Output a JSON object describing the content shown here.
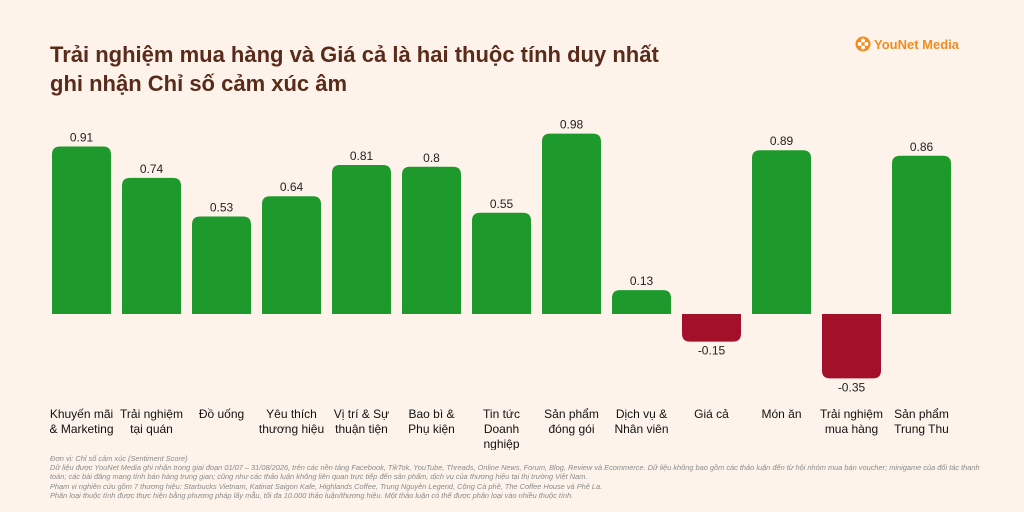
{
  "header": {
    "title_line1": "Trải nghiệm mua hàng và Giá cả là hai thuộc tính duy nhất",
    "title_line2": "ghi nhận Chỉ số cảm xúc âm",
    "logo_text": "YouNet Media",
    "logo_icon": "younet-flower-icon"
  },
  "colors": {
    "background": "#fdf3ea",
    "positive": "#1e9a2c",
    "negative": "#a3102a",
    "title": "#5a2b1a",
    "logo": "#f28c1e"
  },
  "chart_data": {
    "type": "bar",
    "title": "Trải nghiệm mua hàng và Giá cả là hai thuộc tính duy nhất ghi nhận Chỉ số cảm xúc âm",
    "categories": [
      [
        "Khuyến mãi",
        "& Marketing"
      ],
      [
        "Trải nghiệm",
        "tại quán"
      ],
      [
        "Đồ uống"
      ],
      [
        "Yêu thích",
        "thương hiệu"
      ],
      [
        "Vị trí & Sự",
        "thuận tiện"
      ],
      [
        "Bao bì &",
        "Phụ kiện"
      ],
      [
        "Tin tức",
        "Doanh",
        "nghiệp"
      ],
      [
        "Sản phẩm",
        "đóng gói"
      ],
      [
        "Dịch vụ &",
        "Nhân viên"
      ],
      [
        "Giá cả"
      ],
      [
        "Món ăn"
      ],
      [
        "Trải nghiệm",
        "mua hàng"
      ],
      [
        "Sản phẩm",
        "Trung Thu"
      ]
    ],
    "values": [
      0.91,
      0.74,
      0.53,
      0.64,
      0.81,
      0.8,
      0.55,
      0.98,
      0.13,
      -0.15,
      0.89,
      -0.35,
      0.86
    ],
    "value_labels": [
      "0.91",
      "0.74",
      "0.53",
      "0.64",
      "0.81",
      "0.8",
      "0.55",
      "0.98",
      "0.13",
      "-0.15",
      "0.89",
      "-0.35",
      "0.86"
    ],
    "ylim": [
      -0.35,
      0.98
    ],
    "grid": false,
    "legend": "none"
  },
  "footnotes": [
    "Đơn vị: Chỉ số cảm xúc (Sentiment Score)",
    "Dữ liệu được YouNet Media ghi nhận trong giai đoạn 01/07 – 31/08/2026, trên các nền tảng Facebook, TikTok, YouTube, Threads, Online News, Forum, Blog, Review và Ecommerce. Dữ liệu không bao gồm các thảo luận đến từ hội nhóm mua bán voucher; minigame của đối tác thanh toán; các bài đăng mang tính bán hàng trung gian; cũng như các thảo luận không liên quan trực tiếp đến sản phẩm, dịch vụ của thương hiệu tại thị trường Việt Nam.",
    "Phạm vi nghiên cứu gồm 7 thương hiệu: Starbucks Vietnam, Katinat Saigon Kafe, Highlands Coffee, Trung Nguyên Legend, Cộng Cà phê, The Coffee House và Phê La.",
    "Phân loại thuộc tính được thực hiện bằng phương pháp lấy mẫu, tối đa 10.000 thảo luận/thương hiệu. Một thảo luận có thể được phân loại vào nhiều thuộc tính."
  ]
}
